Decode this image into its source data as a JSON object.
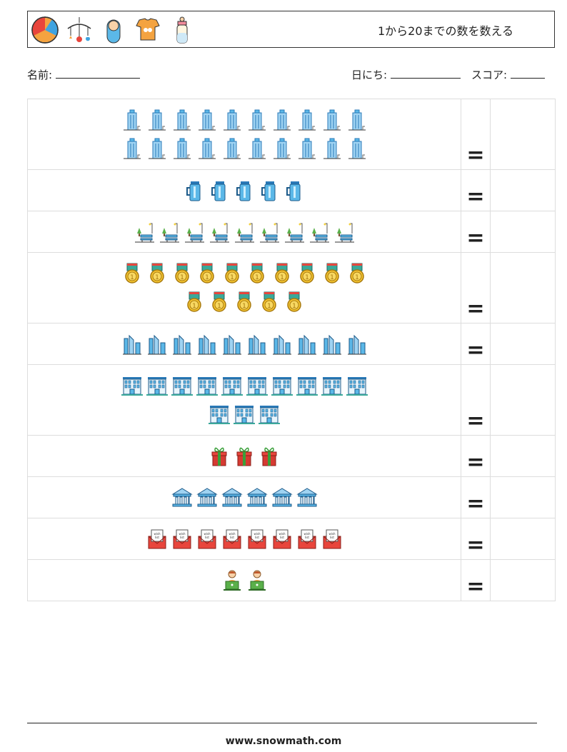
{
  "header": {
    "title": "1から20までの数を数える",
    "icons": [
      "beach-ball-icon",
      "baby-mobile-icon",
      "swaddled-baby-icon",
      "baby-onesie-icon",
      "baby-bottle-icon"
    ]
  },
  "info": {
    "name_label": "名前:",
    "date_label": "日にち:",
    "score_label": "スコア:"
  },
  "equals_sign": "=",
  "rows": [
    {
      "icon": "skyscraper-icon",
      "count": 20
    },
    {
      "icon": "thermos-icon",
      "count": 5
    },
    {
      "icon": "park-bench-icon",
      "count": 9
    },
    {
      "icon": "medal-icon",
      "count": 15
    },
    {
      "icon": "city-towers-icon",
      "count": 10
    },
    {
      "icon": "office-building-icon",
      "count": 13
    },
    {
      "icon": "gift-box-icon",
      "count": 3
    },
    {
      "icon": "museum-icon",
      "count": 6
    },
    {
      "icon": "wish-letter-icon",
      "count": 8
    },
    {
      "icon": "laptop-user-icon",
      "count": 2
    }
  ],
  "footer": "www.snowmath.com"
}
